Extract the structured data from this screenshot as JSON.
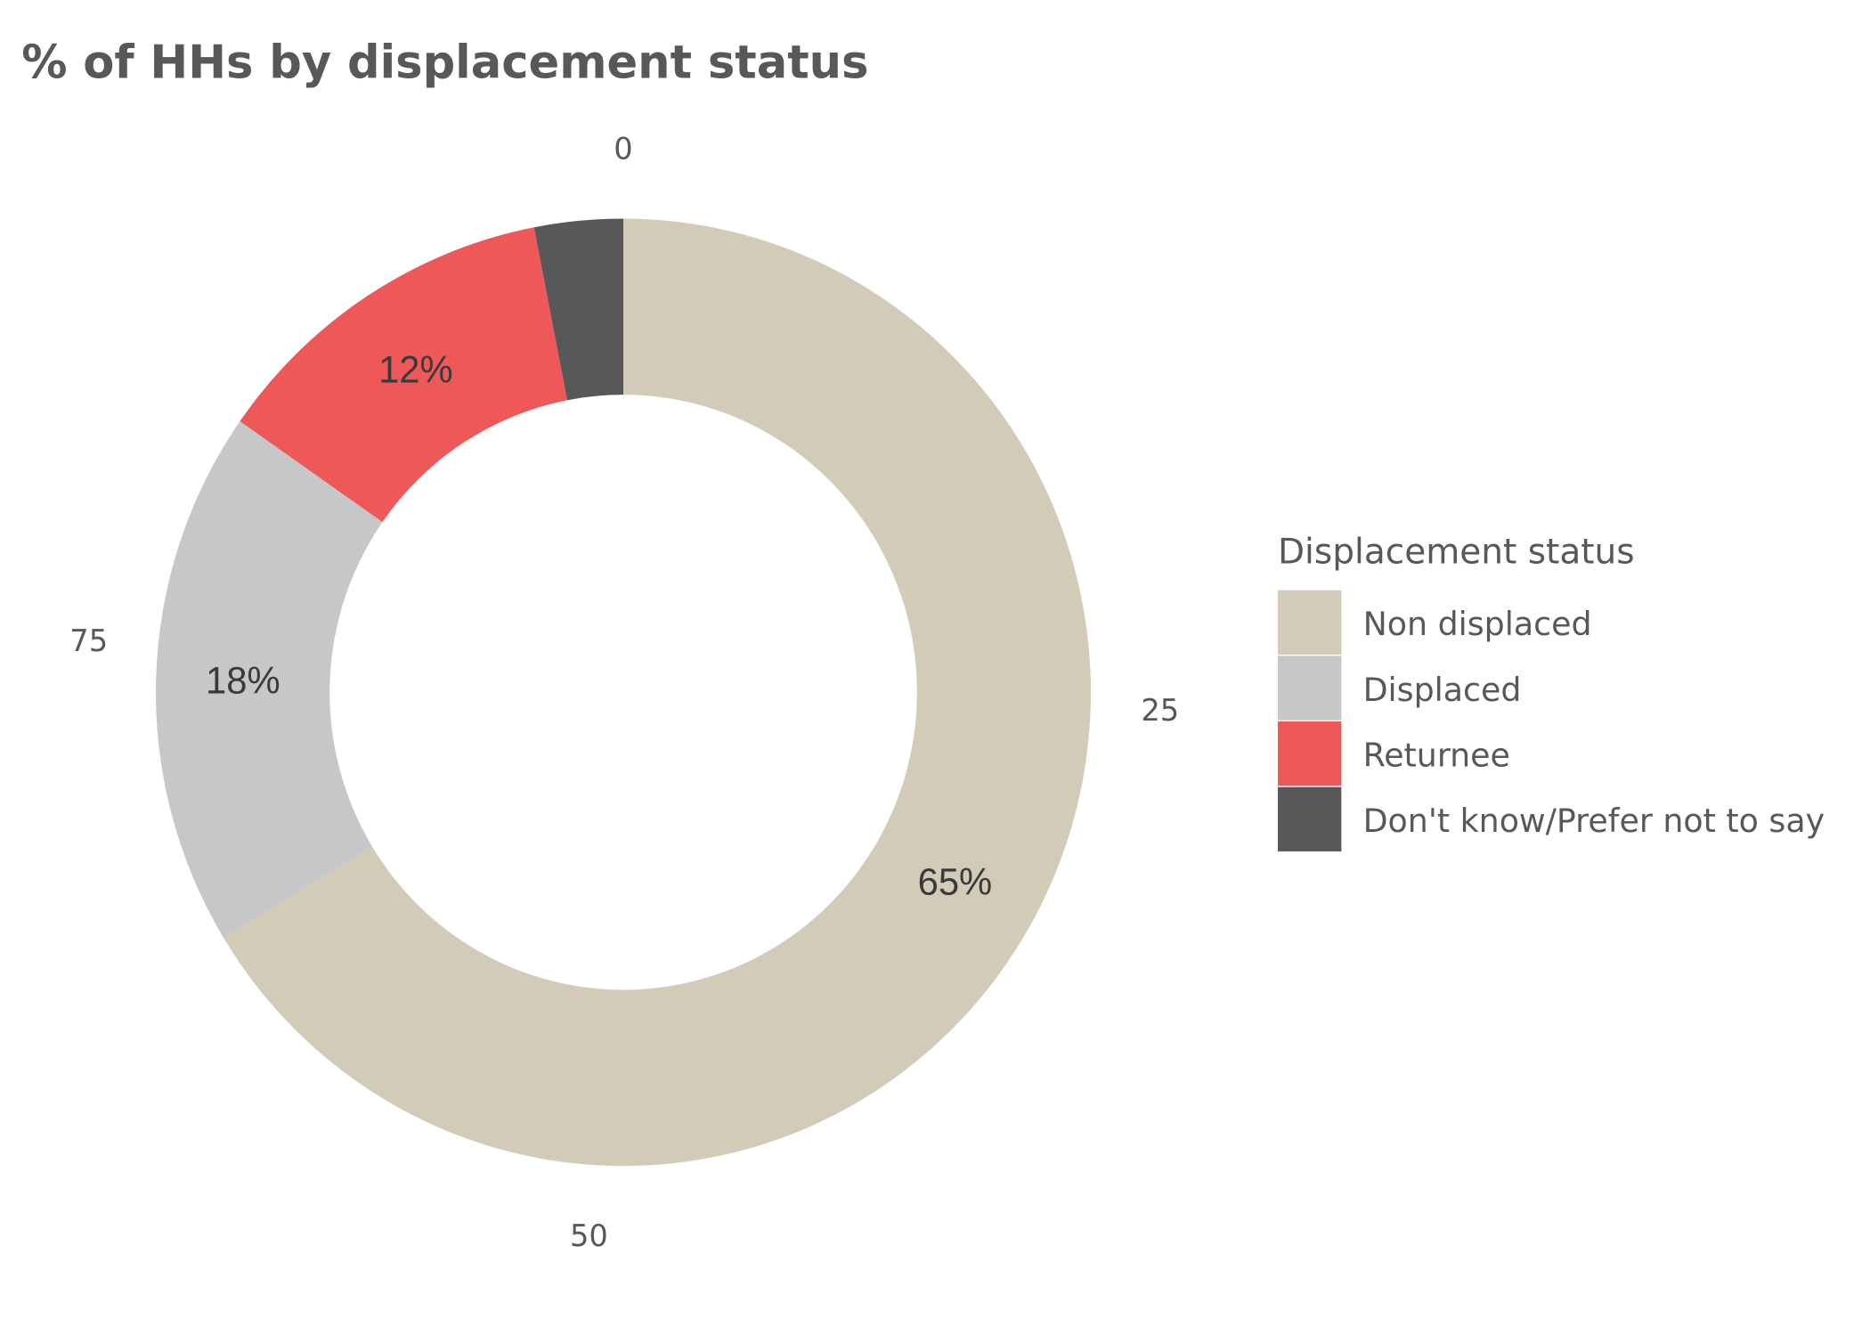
{
  "chart_data": {
    "type": "pie",
    "variant": "donut",
    "title": "% of HHs by displacement status",
    "legend_title": "Displacement status",
    "legend_position": "right",
    "categories": [
      "Non displaced",
      "Displaced",
      "Returnee",
      "Don't know/Prefer not to say"
    ],
    "values": [
      65,
      18,
      12,
      3
    ],
    "data_labels": [
      "65%",
      "18%",
      "12%",
      ""
    ],
    "colors": [
      "#d2cbb8",
      "#c6c7c8",
      "#ee5859",
      "#58585a"
    ],
    "theta_ticks": [
      0,
      25,
      50,
      75
    ],
    "theta_tick_labels": [
      "0",
      "25",
      "50",
      "75"
    ],
    "grid": false
  }
}
